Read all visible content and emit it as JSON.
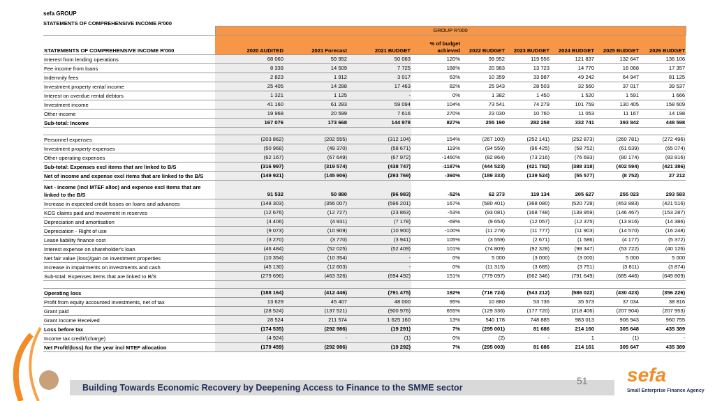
{
  "header": {
    "org": "sefa GROUP",
    "title": "STATEMENTS OF COMPREHENSIVE INCOME R'000"
  },
  "table": {
    "group_header": "GROUP R'000",
    "columns": [
      "STATEMENTS OF COMPREHENSIVE INCOME R'000",
      "2020 AUDITED",
      "2021 Forecast",
      "2021 BUDGET",
      "% of budget achieved",
      "2022 BUDGET",
      "2023 BUDGET",
      "2024 BUDGET",
      "2025 BUDGET",
      "2026 BUDGET"
    ],
    "rows": [
      [
        "Interest from lending operations",
        "68 060",
        "59 952",
        "50 063",
        "120%",
        "99 952",
        "119 556",
        "121 837",
        "132 647",
        "136 106"
      ],
      [
        "Fee income from loans",
        "8 339",
        "14 509",
        "7 725",
        "188%",
        "20 983",
        "13 723",
        "14 770",
        "16 068",
        "17 357"
      ],
      [
        "Indemnity fees",
        "2 823",
        "1 912",
        "3 017",
        "63%",
        "10 359",
        "33 987",
        "49 242",
        "64 947",
        "81 125"
      ],
      [
        "Investment property rental income",
        "25 405",
        "14 288",
        "17 463",
        "82%",
        "25 943",
        "28 503",
        "32 560",
        "37 017",
        "39 537"
      ],
      [
        "Interest on overdue rental debtors",
        "1 321",
        "1 125",
        "-",
        "0%",
        "1 382",
        "1 450",
        "1 520",
        "1 591",
        "1 666"
      ],
      [
        "Investment income",
        "41 160",
        "61 283",
        "59 094",
        "104%",
        "73 541",
        "74 279",
        "101 759",
        "130 405",
        "158 609"
      ],
      [
        "Other income",
        "19 968",
        "20 599",
        "7 616",
        "270%",
        "23 030",
        "10 760",
        "11 053",
        "11 167",
        "14 198"
      ],
      [
        "Sub-total: Income",
        "167 076",
        "173 668",
        "144 978",
        "827%",
        "255 190",
        "282 258",
        "332 741",
        "393 842",
        "448 598"
      ],
      [
        "Personnel expenses",
        "(203 862)",
        "(202 555)",
        "(312 104)",
        "154%",
        "(267 100)",
        "(252 141)",
        "(252 873)",
        "(260 781)",
        "(272 496)"
      ],
      [
        "Investment property expenses",
        "(50 968)",
        "(49 370)",
        "(58 671)",
        "119%",
        "(94 559)",
        "(96 425)",
        "(58 752)",
        "(61 639)",
        "(65 074)"
      ],
      [
        "Other operating expenses",
        "(62 167)",
        "(67 649)",
        "(67 972)",
        "-1460%",
        "(82 864)",
        "(73 216)",
        "(76 693)",
        "(80 174)",
        "(83 816)"
      ],
      [
        "Sub-total: Expenses excl items that are linked to B/S",
        "(316 997)",
        "(319 574)",
        "(438 747)",
        "-1187%",
        "(444 523)",
        "(421 782)",
        "(388 318)",
        "(402 594)",
        "(421 386)"
      ],
      [
        "Net of income and expense excl items that are linked to the B/S",
        "(149 921)",
        "(145 906)",
        "(293 769)",
        "-360%",
        "(189 333)",
        "(139 524)",
        "(55 577)",
        "(8 752)",
        "27 212"
      ],
      [
        "Net - income (incl MTEF alloc) and expense excl items that are linked to the B/S",
        "91 532",
        "50 880",
        "(96 983)",
        "-52%",
        "62 373",
        "119 134",
        "205 627",
        "255 023",
        "293 583"
      ],
      [
        "Increase in expected credit losses on loans and advances",
        "(148 303)",
        "(356 007)",
        "(596 201)",
        "167%",
        "(580 401)",
        "(368 080)",
        "(520 728)",
        "(453 883)",
        "(421 516)"
      ],
      [
        "KCG claims paid and movement in reserves",
        "(12 676)",
        "(12 727)",
        "(23 863)",
        "-53%",
        "(93 081)",
        "(168 748)",
        "(139 959)",
        "(146 467)",
        "(153 287)"
      ],
      [
        "Depreciation and amortisation",
        "(4 406)",
        "(4 931)",
        "(7 178)",
        "-69%",
        "(9 654)",
        "(12 057)",
        "(12 375)",
        "(13 816)",
        "(14 386)"
      ],
      [
        "Depreciation - Right of use",
        "(9 073)",
        "(10 909)",
        "(10 900)",
        "-100%",
        "(11 278)",
        "(11 777)",
        "(11 903)",
        "(14 570)",
        "(16 248)"
      ],
      [
        "Lease liability finance cost",
        "(3 270)",
        "(3 770)",
        "(3 941)",
        "105%",
        "(3 559)",
        "(2 671)",
        "(1 586)",
        "(4 177)",
        "(5 372)"
      ],
      [
        "Interest expense on shareholder's loan",
        "(46 484)",
        "(52 025)",
        "(52 409)",
        "101%",
        "(74 809)",
        "(92 328)",
        "(98 347)",
        "(53 722)",
        "(40 126)"
      ],
      [
        "Net fair value (loss)/gain on investment properties",
        "(10 354)",
        "(10 354)",
        "-",
        "0%",
        "5 000",
        "(3 000)",
        "(3 000)",
        "5 000",
        "5 000"
      ],
      [
        "Increase in impairments on investments and cash",
        "(45 130)",
        "(12 603)",
        "-",
        "0%",
        "(11 315)",
        "(3 685)",
        "(3 751)",
        "(3 811)",
        "(3 874)"
      ],
      [
        "Sub-total: Expenses items that are linked to B/S",
        "(279 696)",
        "(463 326)",
        "(694 492)",
        "151%",
        "(779 097)",
        "(662 346)",
        "(791 649)",
        "(685 446)",
        "(649 809)"
      ],
      [
        "Operating loss",
        "(188 164)",
        "(412 446)",
        "(791 475)",
        "192%",
        "(716 724)",
        "(543 212)",
        "(586 022)",
        "(430 423)",
        "(356 226)"
      ],
      [
        "Profit from equity accounted investments, net of tax",
        "13 629",
        "45 407",
        "48 000",
        "95%",
        "10 880",
        "53 736",
        "35 573",
        "37 034",
        "38 816"
      ],
      [
        "Grant paid",
        "(28 524)",
        "(137 521)",
        "(900 976)",
        "655%",
        "(129 336)",
        "(177 720)",
        "(218 406)",
        "(207 904)",
        "(207 953)"
      ],
      [
        "Grant Income Received",
        "28 524",
        "211 574",
        "1 625 160",
        "13%",
        "540 178",
        "748 885",
        "983 013",
        "906 943",
        "960 755"
      ],
      [
        "Loss before tax",
        "(174 535)",
        "(292 986)",
        "(19 291)",
        "7%",
        "(295 001)",
        "81 686",
        "214 160",
        "305 648",
        "435 389"
      ],
      [
        "Income tax credit/(charge)",
        "(4 924)",
        "-",
        "(1)",
        "0%",
        "(2)",
        "-",
        "1",
        "(1)",
        "-"
      ],
      [
        "Net Profit/(loss) for the year incl MTEF allocation",
        "(179 459)",
        "(292 986)",
        "(19 292)",
        "7%",
        "(295 003)",
        "81 686",
        "214 161",
        "305 647",
        "435 389"
      ]
    ]
  },
  "footer": {
    "tagline": "Building Towards Economic Recovery by Deepening Access to Finance to the SMME sector",
    "page": "51",
    "logo": "sefa",
    "logo_subtitle": "Small Enterprise Finance Agency"
  }
}
